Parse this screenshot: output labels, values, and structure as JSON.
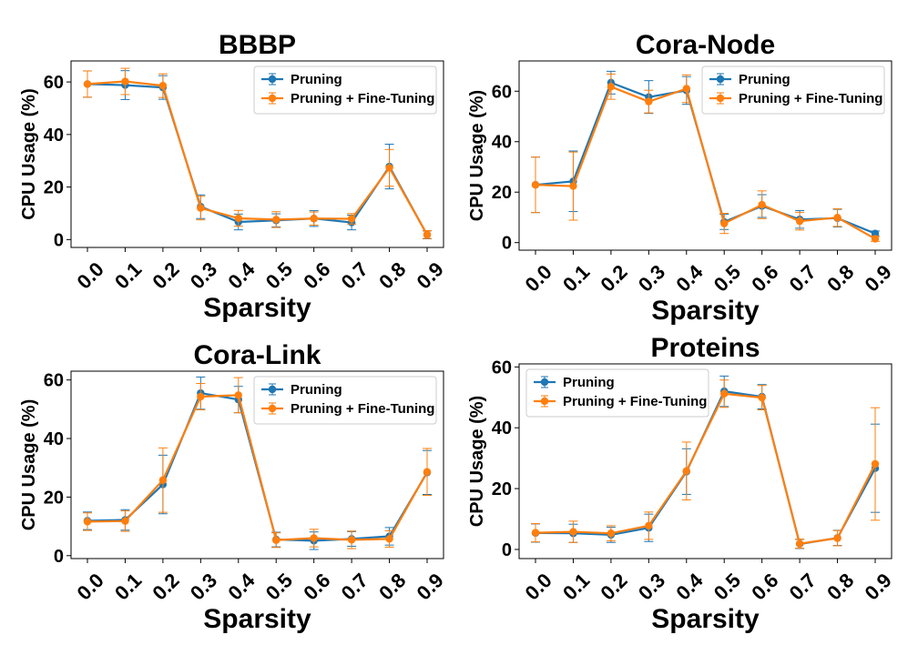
{
  "chart_data": [
    {
      "type": "line",
      "title": "BBBP",
      "xlabel": "Sparsity",
      "ylabel": "CPU Usage (%)",
      "x": [
        "0.0",
        "0.1",
        "0.2",
        "0.3",
        "0.4",
        "0.5",
        "0.6",
        "0.7",
        "0.8",
        "0.9"
      ],
      "ylim": [
        -3,
        68
      ],
      "yticks": [
        0,
        20,
        40,
        60
      ],
      "legend_position": "top-right",
      "series": [
        {
          "name": "Pruning",
          "color": "#1f77b4",
          "values": [
            59.2,
            58.8,
            57.9,
            12.5,
            6.7,
            7.3,
            8.0,
            6.5,
            27.8,
            1.8
          ],
          "errors": [
            5.0,
            5.5,
            4.5,
            4.5,
            3.0,
            2.5,
            3.0,
            2.8,
            8.5,
            1.5
          ]
        },
        {
          "name": "Pruning + Fine-Tuning",
          "color": "#ff7f0e",
          "values": [
            59.2,
            60.2,
            58.6,
            12.0,
            8.1,
            7.6,
            8.0,
            7.9,
            27.3,
            1.9
          ],
          "errors": [
            5.0,
            5.0,
            4.5,
            4.5,
            3.0,
            3.0,
            2.5,
            2.0,
            7.0,
            1.5
          ]
        }
      ]
    },
    {
      "type": "line",
      "title": "Cora-Node",
      "xlabel": "Sparsity",
      "ylabel": "CPU Usage (%)",
      "x": [
        "0.0",
        "0.1",
        "0.2",
        "0.3",
        "0.4",
        "0.5",
        "0.6",
        "0.7",
        "0.8",
        "0.9"
      ],
      "ylim": [
        -3,
        72
      ],
      "yticks": [
        0,
        20,
        40,
        60
      ],
      "legend_position": "top-right",
      "series": [
        {
          "name": "Pruning",
          "color": "#1f77b4",
          "values": [
            22.9,
            24.3,
            63.4,
            57.7,
            60.3,
            8.2,
            14.5,
            9.2,
            9.7,
            3.6
          ],
          "errors": [
            11.0,
            12.0,
            4.5,
            6.5,
            5.5,
            3.0,
            4.5,
            3.5,
            3.5,
            1.0
          ]
        },
        {
          "name": "Pruning + Fine-Tuning",
          "color": "#ff7f0e",
          "values": [
            22.9,
            22.4,
            61.8,
            55.9,
            61.0,
            7.6,
            15.0,
            8.5,
            9.9,
            1.5
          ],
          "errors": [
            11.0,
            13.5,
            5.0,
            4.5,
            5.5,
            4.0,
            5.5,
            3.5,
            3.5,
            1.0
          ]
        }
      ]
    },
    {
      "type": "line",
      "title": "Cora-Link",
      "xlabel": "Sparsity",
      "ylabel": "CPU Usage (%)",
      "x": [
        "0.0",
        "0.1",
        "0.2",
        "0.3",
        "0.4",
        "0.5",
        "0.6",
        "0.7",
        "0.8",
        "0.9"
      ],
      "ylim": [
        -1,
        63
      ],
      "yticks": [
        0,
        20,
        40,
        60
      ],
      "legend_position": "top-right",
      "series": [
        {
          "name": "Pruning",
          "color": "#1f77b4",
          "values": [
            11.9,
            12.2,
            24.3,
            55.5,
            53.3,
            5.5,
            5.1,
            5.7,
            6.6,
            28.4
          ],
          "errors": [
            3.0,
            3.5,
            10.0,
            5.5,
            4.5,
            2.5,
            3.0,
            2.5,
            3.0,
            7.5
          ]
        },
        {
          "name": "Pruning + Fine-Tuning",
          "color": "#ff7f0e",
          "values": [
            11.6,
            11.8,
            25.8,
            54.3,
            54.8,
            5.3,
            6.0,
            5.4,
            5.7,
            28.6
          ],
          "errors": [
            3.0,
            3.5,
            11.0,
            4.5,
            6.0,
            2.5,
            3.0,
            3.0,
            2.8,
            8.0
          ]
        }
      ]
    },
    {
      "type": "line",
      "title": "Proteins",
      "xlabel": "Sparsity",
      "ylabel": "CPU Usage (%)",
      "x": [
        "0.0",
        "0.1",
        "0.2",
        "0.3",
        "0.4",
        "0.5",
        "0.6",
        "0.7",
        "0.8",
        "0.9"
      ],
      "ylim": [
        -3,
        61
      ],
      "yticks": [
        0,
        20,
        40,
        60
      ],
      "legend_position": "top-left",
      "series": [
        {
          "name": "Pruning",
          "color": "#1f77b4",
          "values": [
            5.4,
            5.3,
            4.8,
            7.1,
            25.6,
            52.0,
            50.2,
            1.8,
            3.8,
            26.7
          ],
          "errors": [
            3.0,
            3.0,
            2.5,
            4.5,
            7.5,
            5.0,
            4.0,
            1.5,
            2.5,
            14.5
          ]
        },
        {
          "name": "Pruning + Fine-Tuning",
          "color": "#ff7f0e",
          "values": [
            5.5,
            5.8,
            5.3,
            7.8,
            25.8,
            51.2,
            49.9,
            1.9,
            3.7,
            28.1
          ],
          "errors": [
            3.0,
            3.5,
            2.5,
            4.5,
            9.5,
            4.5,
            4.0,
            1.5,
            2.5,
            18.5
          ]
        }
      ]
    }
  ]
}
